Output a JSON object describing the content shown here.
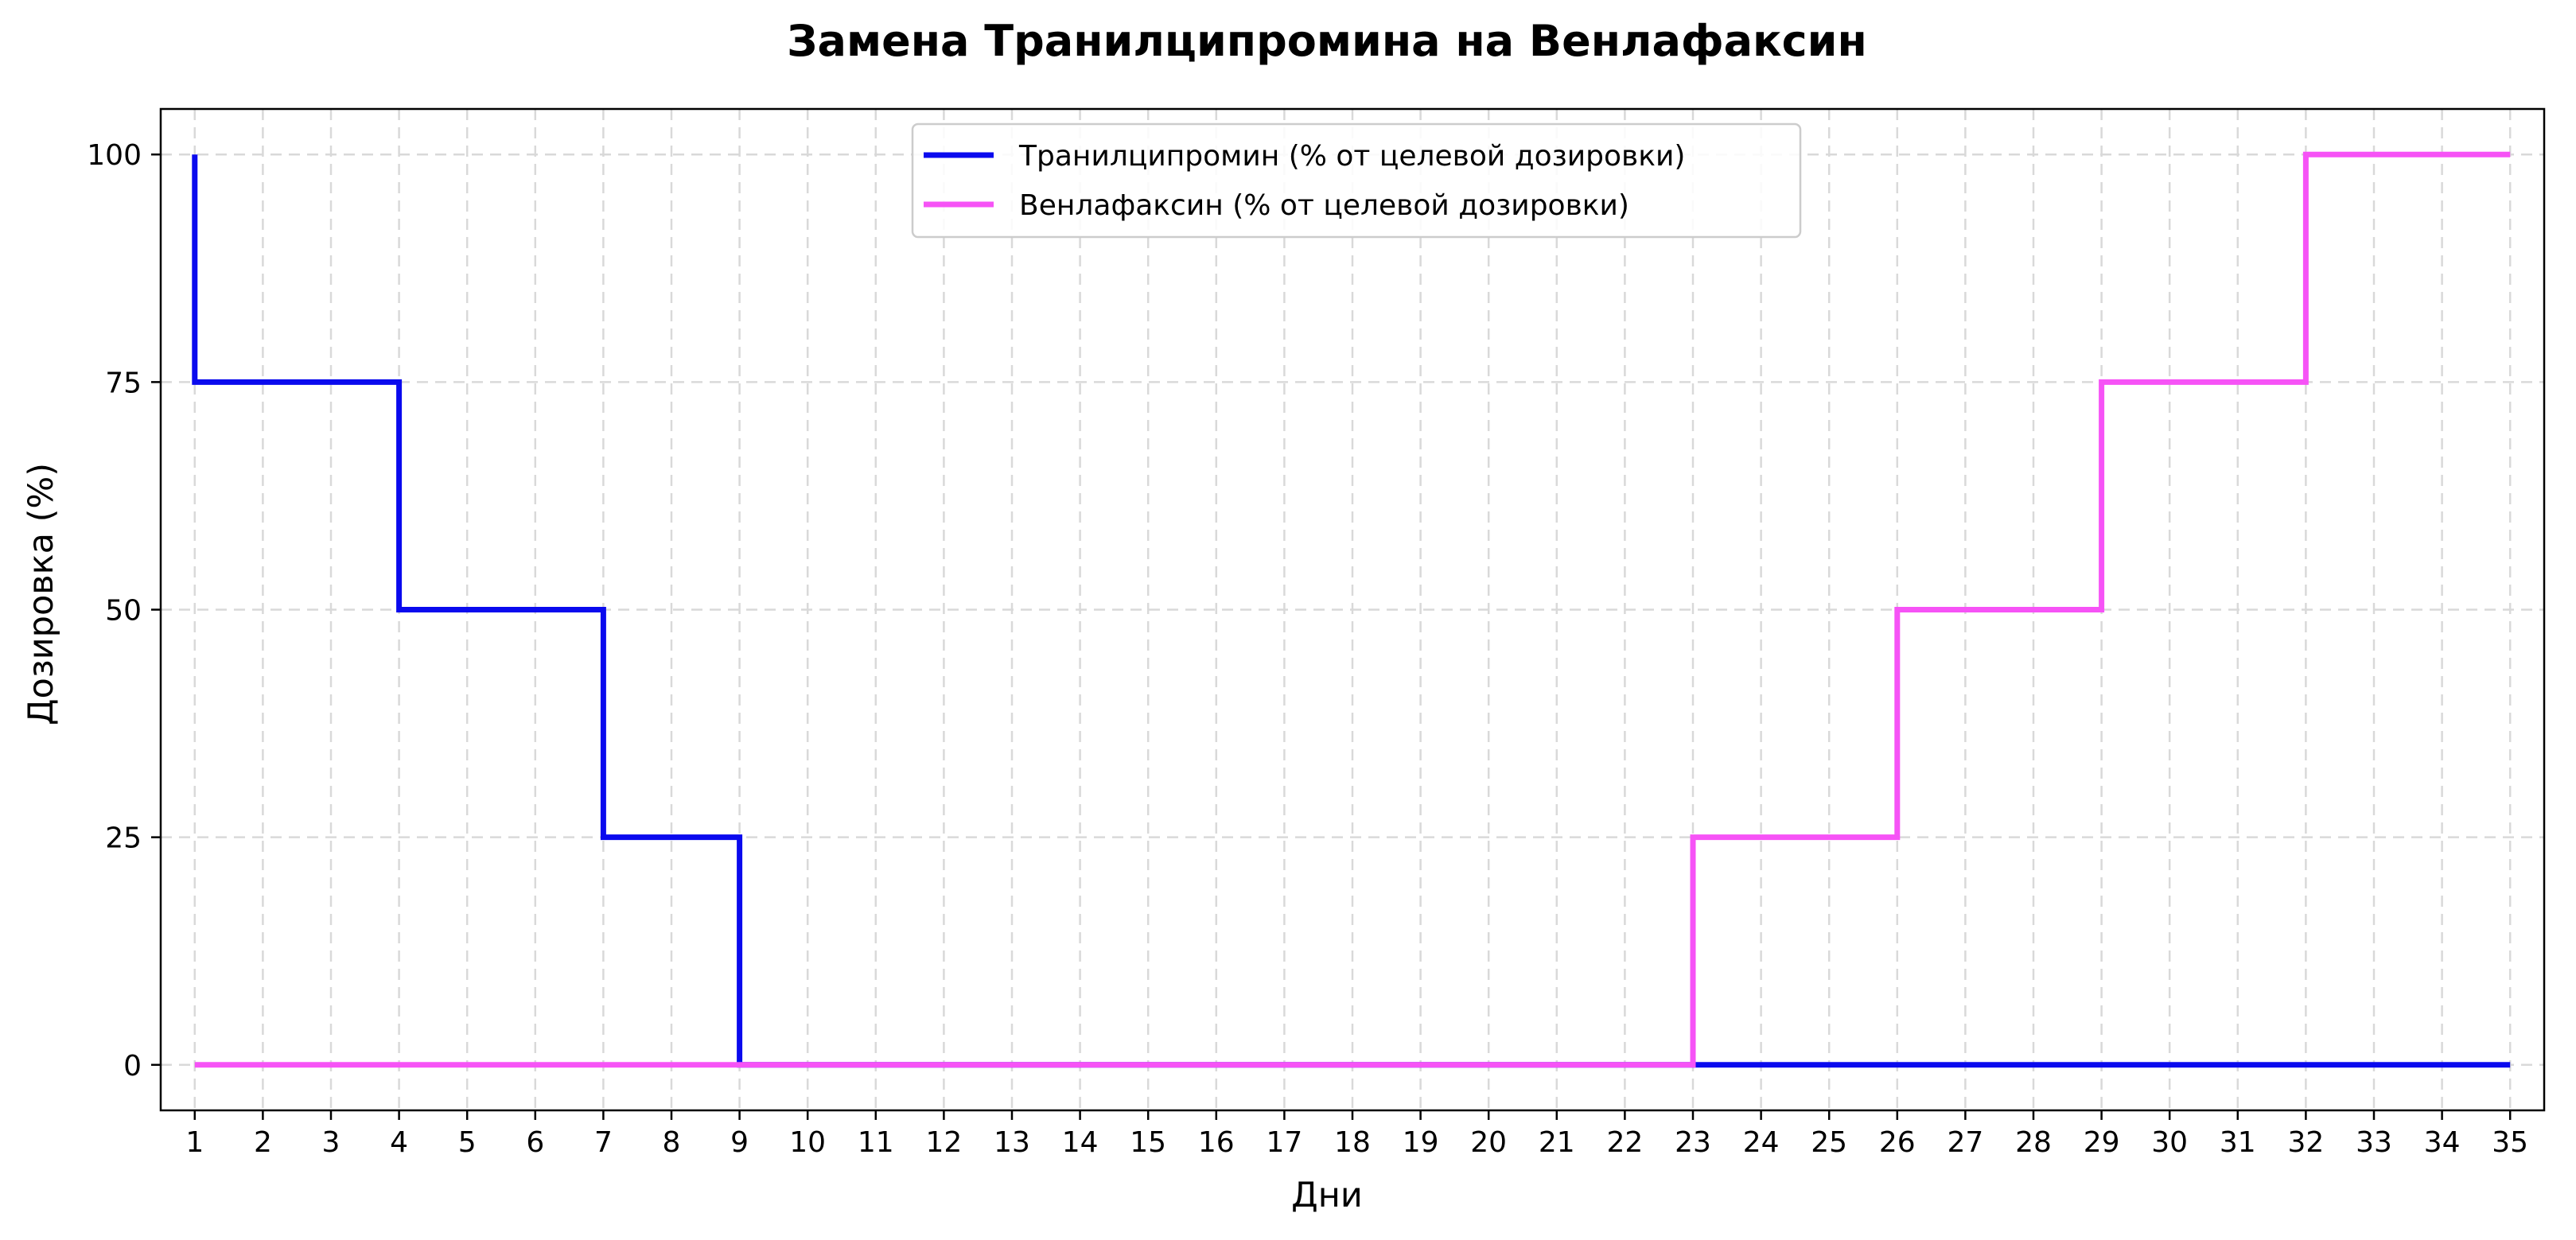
{
  "chart_data": {
    "type": "line",
    "step": "post",
    "title": "Замена Транилципромина на Венлафаксин",
    "xlabel": "Дни",
    "ylabel": "Дозировка (%)",
    "xlim": [
      0.5,
      35.5
    ],
    "ylim": [
      -5,
      105
    ],
    "x_ticks": [
      1,
      2,
      3,
      4,
      5,
      6,
      7,
      8,
      9,
      10,
      11,
      12,
      13,
      14,
      15,
      16,
      17,
      18,
      19,
      20,
      21,
      22,
      23,
      24,
      25,
      26,
      27,
      28,
      29,
      30,
      31,
      32,
      33,
      34,
      35
    ],
    "y_ticks": [
      0,
      25,
      50,
      75,
      100
    ],
    "grid": true,
    "legend_position": "top-center",
    "series": [
      {
        "name": "Транилципромин (% от целевой дозировки)",
        "color": "#0a0aee",
        "points": [
          [
            1,
            100
          ],
          [
            1,
            75
          ],
          [
            4,
            75
          ],
          [
            4,
            50
          ],
          [
            7,
            50
          ],
          [
            7,
            25
          ],
          [
            9,
            25
          ],
          [
            9,
            0
          ],
          [
            35,
            0
          ]
        ]
      },
      {
        "name": "Венлафаксин (% от целевой дозировки)",
        "color": "#f653f6",
        "points": [
          [
            1,
            0
          ],
          [
            23,
            0
          ],
          [
            23,
            25
          ],
          [
            26,
            25
          ],
          [
            26,
            50
          ],
          [
            29,
            50
          ],
          [
            29,
            75
          ],
          [
            32,
            75
          ],
          [
            32,
            100
          ],
          [
            35,
            100
          ]
        ]
      }
    ]
  }
}
